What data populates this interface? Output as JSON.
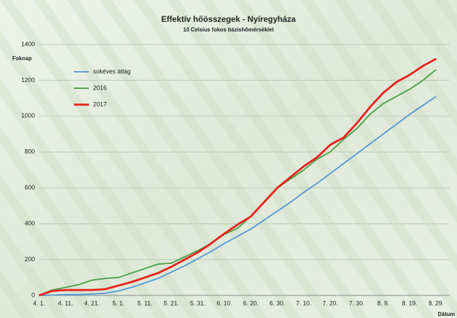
{
  "chart_data": {
    "type": "line",
    "title": "Effektív hőösszegek - Nyíregyháza",
    "subtitle": "10 Celsius fokos bázishőmérséklet",
    "y_label": "Foknap",
    "x_label": "Dátum",
    "categories": [
      "4. 1.",
      null,
      "4. 11.",
      null,
      "4. 21.",
      null,
      "5. 1.",
      null,
      "5. 11.",
      null,
      "5. 21.",
      null,
      "5. 31.",
      null,
      "6. 10.",
      null,
      "6. 20.",
      null,
      "6. 30.",
      null,
      "7. 10.",
      null,
      "7. 20.",
      null,
      "7. 30.",
      null,
      "8. 9.",
      null,
      "8. 19.",
      null,
      "8. 29."
    ],
    "series": [
      {
        "name": "sokéves átlag",
        "color": "#5b9bd5",
        "values": [
          0,
          2,
          5,
          5,
          8,
          12,
          25,
          45,
          70,
          95,
          130,
          165,
          205,
          245,
          290,
          330,
          370,
          420,
          470,
          520,
          575,
          625,
          680,
          735,
          790,
          845,
          900,
          955,
          1010,
          1060,
          1110
        ]
      },
      {
        "name": "2016",
        "color": "#4ea24a",
        "values": [
          0,
          30,
          45,
          60,
          85,
          95,
          100,
          125,
          150,
          175,
          180,
          215,
          250,
          290,
          340,
          375,
          440,
          520,
          600,
          650,
          700,
          760,
          800,
          870,
          930,
          1010,
          1070,
          1110,
          1150,
          1200,
          1260
        ]
      },
      {
        "name": "2017",
        "color": "#e8231e",
        "values": [
          0,
          25,
          30,
          30,
          30,
          35,
          55,
          75,
          100,
          125,
          160,
          200,
          240,
          290,
          345,
          395,
          440,
          520,
          600,
          660,
          720,
          770,
          840,
          880,
          960,
          1050,
          1130,
          1190,
          1230,
          1280,
          1320
        ]
      }
    ],
    "ylim": [
      0,
      1400
    ],
    "yticks": [
      0,
      200,
      400,
      600,
      800,
      1000,
      1200,
      1400
    ],
    "grid": true
  }
}
